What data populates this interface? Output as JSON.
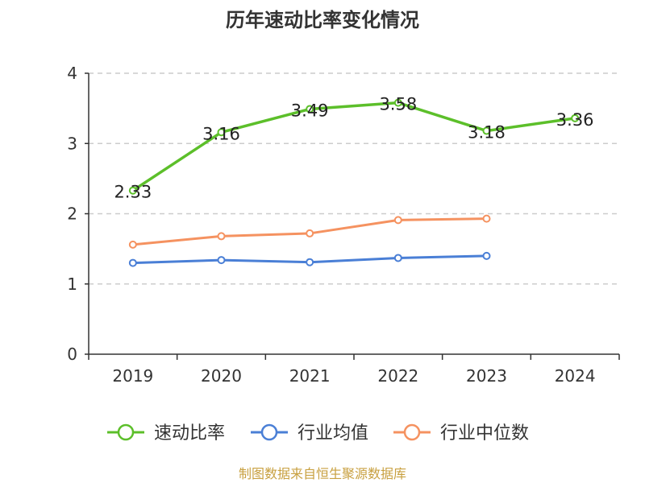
{
  "chart_data": {
    "type": "line",
    "title": "历年速动比率变化情况",
    "categories": [
      "2019",
      "2020",
      "2021",
      "2022",
      "2023",
      "2024"
    ],
    "ylim": [
      0,
      4
    ],
    "yticks": [
      "0",
      "1",
      "2",
      "3",
      "4"
    ],
    "grid": true,
    "legend_position": "bottom",
    "series": [
      {
        "name": "速动比率",
        "values": [
          2.33,
          3.16,
          3.49,
          3.58,
          3.18,
          3.36
        ],
        "labels": [
          "2.33",
          "3.16",
          "3.49",
          "3.58",
          "3.18",
          "3.36"
        ],
        "color": "#5cbf2a"
      },
      {
        "name": "行业均值",
        "values": [
          1.3,
          1.34,
          1.31,
          1.37,
          1.4,
          null
        ],
        "color": "#4a7fd6"
      },
      {
        "name": "行业中位数",
        "values": [
          1.56,
          1.68,
          1.72,
          1.91,
          1.93,
          null
        ],
        "color": "#f59260"
      }
    ]
  },
  "source": {
    "text": "制图数据来自恒生聚源数据库",
    "color": "#c8a040"
  }
}
